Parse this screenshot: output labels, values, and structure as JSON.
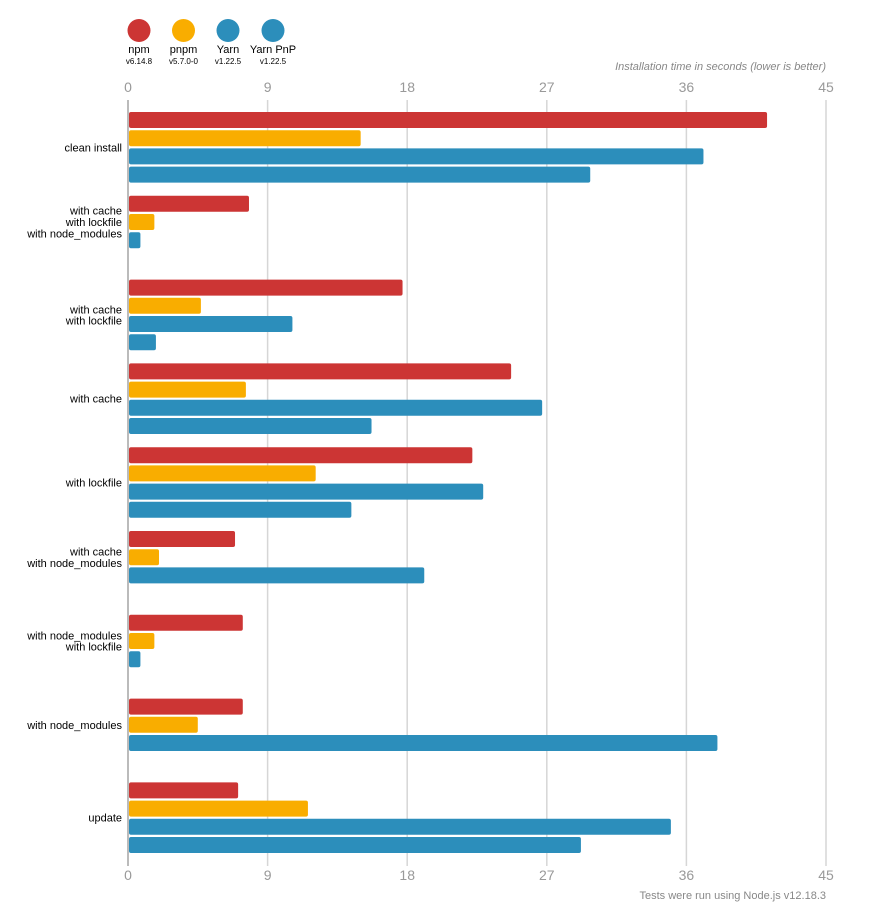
{
  "chart_data": {
    "type": "bar",
    "orientation": "horizontal",
    "xlabel": "Installation time in seconds (lower is better)",
    "footnote": "Tests were run using Node.js v12.18.3",
    "xlim": [
      0,
      45
    ],
    "xticks": [
      "0",
      "9",
      "18",
      "27",
      "36",
      "45"
    ],
    "grid": true,
    "legend_position": "top-left",
    "categories": [
      [
        "clean install"
      ],
      [
        "with cache",
        "with lockfile",
        "with node_modules"
      ],
      [
        "with cache",
        "with lockfile"
      ],
      [
        "with cache"
      ],
      [
        "with lockfile"
      ],
      [
        "with cache",
        "with node_modules"
      ],
      [
        "with node_modules",
        "with lockfile"
      ],
      [
        "with node_modules"
      ],
      [
        "update"
      ]
    ],
    "series": [
      {
        "name": "npm",
        "version": "v6.14.8",
        "color": "#cc3534",
        "values": [
          41.2,
          7.8,
          17.7,
          24.7,
          22.2,
          6.9,
          7.4,
          7.4,
          7.1
        ]
      },
      {
        "name": "pnpm",
        "version": "v5.7.0-0",
        "color": "#f9ad00",
        "values": [
          15.0,
          1.7,
          4.7,
          7.6,
          12.1,
          2.0,
          1.7,
          4.5,
          11.6
        ]
      },
      {
        "name": "Yarn",
        "version": "v1.22.5",
        "color": "#2c8ebb",
        "values": [
          37.1,
          0.8,
          10.6,
          26.7,
          22.9,
          19.1,
          0.8,
          38.0,
          35.0
        ]
      },
      {
        "name": "Yarn PnP",
        "version": "v1.22.5",
        "color": "#2c8ebb",
        "values": [
          29.8,
          null,
          1.8,
          15.7,
          14.4,
          null,
          null,
          null,
          29.2
        ]
      }
    ]
  }
}
